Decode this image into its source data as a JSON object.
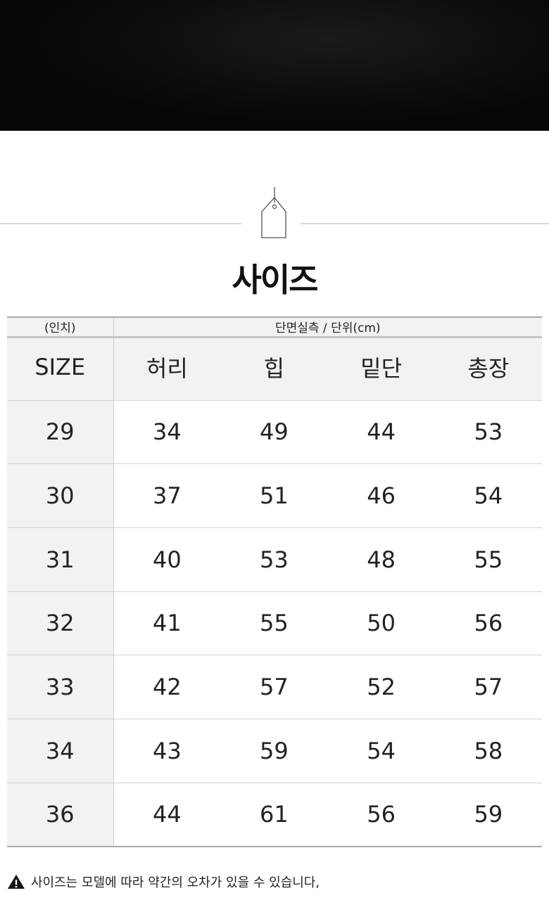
{
  "title": "사이즈",
  "table": {
    "unit_header": "(인치)",
    "measure_header": "단면실측 / 단위(cm)",
    "columns": [
      "SIZE",
      "허리",
      "힙",
      "밑단",
      "총장"
    ],
    "rows": [
      [
        "29",
        "34",
        "49",
        "44",
        "53"
      ],
      [
        "30",
        "37",
        "51",
        "46",
        "54"
      ],
      [
        "31",
        "40",
        "53",
        "48",
        "55"
      ],
      [
        "32",
        "41",
        "55",
        "50",
        "56"
      ],
      [
        "33",
        "42",
        "57",
        "52",
        "57"
      ],
      [
        "34",
        "43",
        "59",
        "54",
        "58"
      ],
      [
        "36",
        "44",
        "61",
        "56",
        "59"
      ]
    ]
  },
  "note": {
    "icon": "warning-icon",
    "text": "사이즈는 모델에 따라 약간의 오차가 있을 수 있습니다,"
  }
}
